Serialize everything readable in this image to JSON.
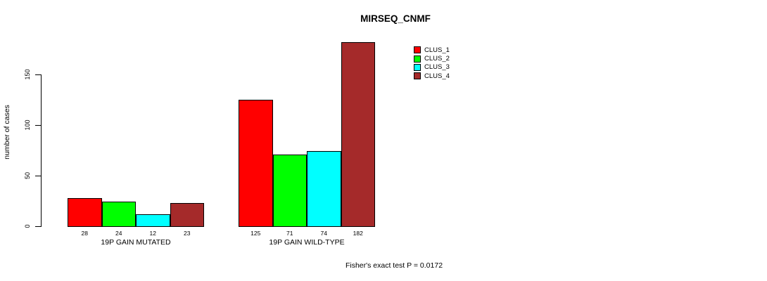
{
  "chart_data": {
    "type": "bar",
    "title": "MIRSEQ_CNMF",
    "ylabel": "number of cases",
    "xlabel": "",
    "categories": [
      "19P GAIN MUTATED",
      "19P GAIN WILD-TYPE"
    ],
    "series": [
      {
        "name": "CLUS_1",
        "color": "#ff0000",
        "values": [
          28,
          125
        ]
      },
      {
        "name": "CLUS_2",
        "color": "#00ff00",
        "values": [
          24,
          71
        ]
      },
      {
        "name": "CLUS_3",
        "color": "#00ffff",
        "values": [
          12,
          74
        ]
      },
      {
        "name": "CLUS_4",
        "color": "#a52a2a",
        "values": [
          23,
          182
        ]
      }
    ],
    "groups": [
      {
        "label": "19P GAIN MUTATED",
        "values": [
          28,
          24,
          12,
          23
        ]
      },
      {
        "label": "19P GAIN WILD-TYPE",
        "values": [
          125,
          71,
          74,
          182
        ]
      }
    ],
    "yticks": [
      0,
      50,
      100,
      150
    ],
    "ylim": [
      0,
      182
    ],
    "grid": false,
    "legend_position": "top-right",
    "bar_value_labels_shown": true,
    "annotation": "Fisher's exact test P = 0.0172"
  }
}
